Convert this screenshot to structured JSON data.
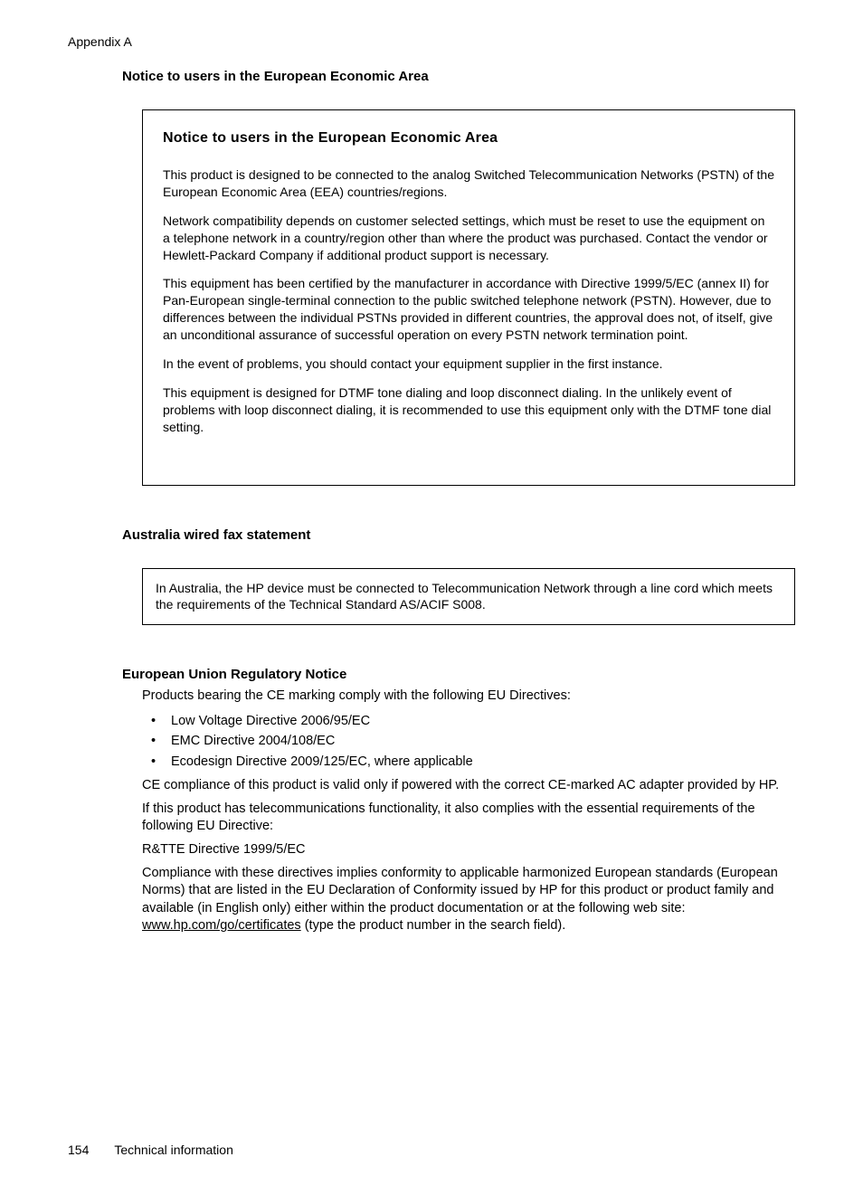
{
  "header": {
    "appendix_label": "Appendix A"
  },
  "section1": {
    "heading": "Notice to users in the European Economic Area",
    "box": {
      "title": "Notice to users in the European Economic Area",
      "p1": "This product is designed to be connected to the analog Switched Telecommunication Networks (PSTN) of the European Economic Area (EEA) countries/regions.",
      "p2": "Network compatibility depends on customer selected settings, which must be reset to use the equipment on a telephone network in a country/region other than where the product was purchased. Contact the vendor or Hewlett-Packard Company if additional product support is necessary.",
      "p3": "This equipment has been certified by the manufacturer in accordance with Directive 1999/5/EC (annex II) for Pan-European single-terminal connection to the public switched telephone network (PSTN). However, due to differences between the individual PSTNs provided in different countries, the approval does not, of itself, give an unconditional assurance of successful operation on every PSTN network termination point.",
      "p4": "In the event of problems, you should contact your equipment supplier in the first instance.",
      "p5": "This equipment is designed for DTMF tone dialing and loop disconnect dialing. In the unlikely event of problems with loop disconnect dialing, it is recommended to use this equipment only with the DTMF tone dial setting."
    }
  },
  "section2": {
    "heading": "Australia wired fax statement",
    "box": {
      "p1": "In Australia, the HP device must be connected to Telecommunication Network through a line cord which meets the requirements of the Technical Standard AS/ACIF S008."
    }
  },
  "section3": {
    "heading": "European Union Regulatory Notice",
    "intro": "Products bearing the CE marking comply with the following EU Directives:",
    "bullets": [
      "Low Voltage Directive 2006/95/EC",
      "EMC Directive 2004/108/EC",
      "Ecodesign Directive 2009/125/EC, where applicable"
    ],
    "p2": "CE compliance of this product is valid only if powered with the correct CE-marked AC adapter provided by HP.",
    "p3": "If this product has telecommunications functionality, it also complies with the essential requirements of the following EU Directive:",
    "p4": "R&TTE Directive 1999/5/EC",
    "p5_pre": "Compliance with these directives implies conformity to applicable harmonized European standards (European Norms) that are listed in the EU Declaration of Conformity issued by HP for this product or product family and available (in English only) either within the product documentation or at the following web site: ",
    "p5_link": "www.hp.com/go/certificates",
    "p5_post": " (type the product number in the search field)."
  },
  "footer": {
    "page_number": "154",
    "footer_text": "Technical information"
  }
}
